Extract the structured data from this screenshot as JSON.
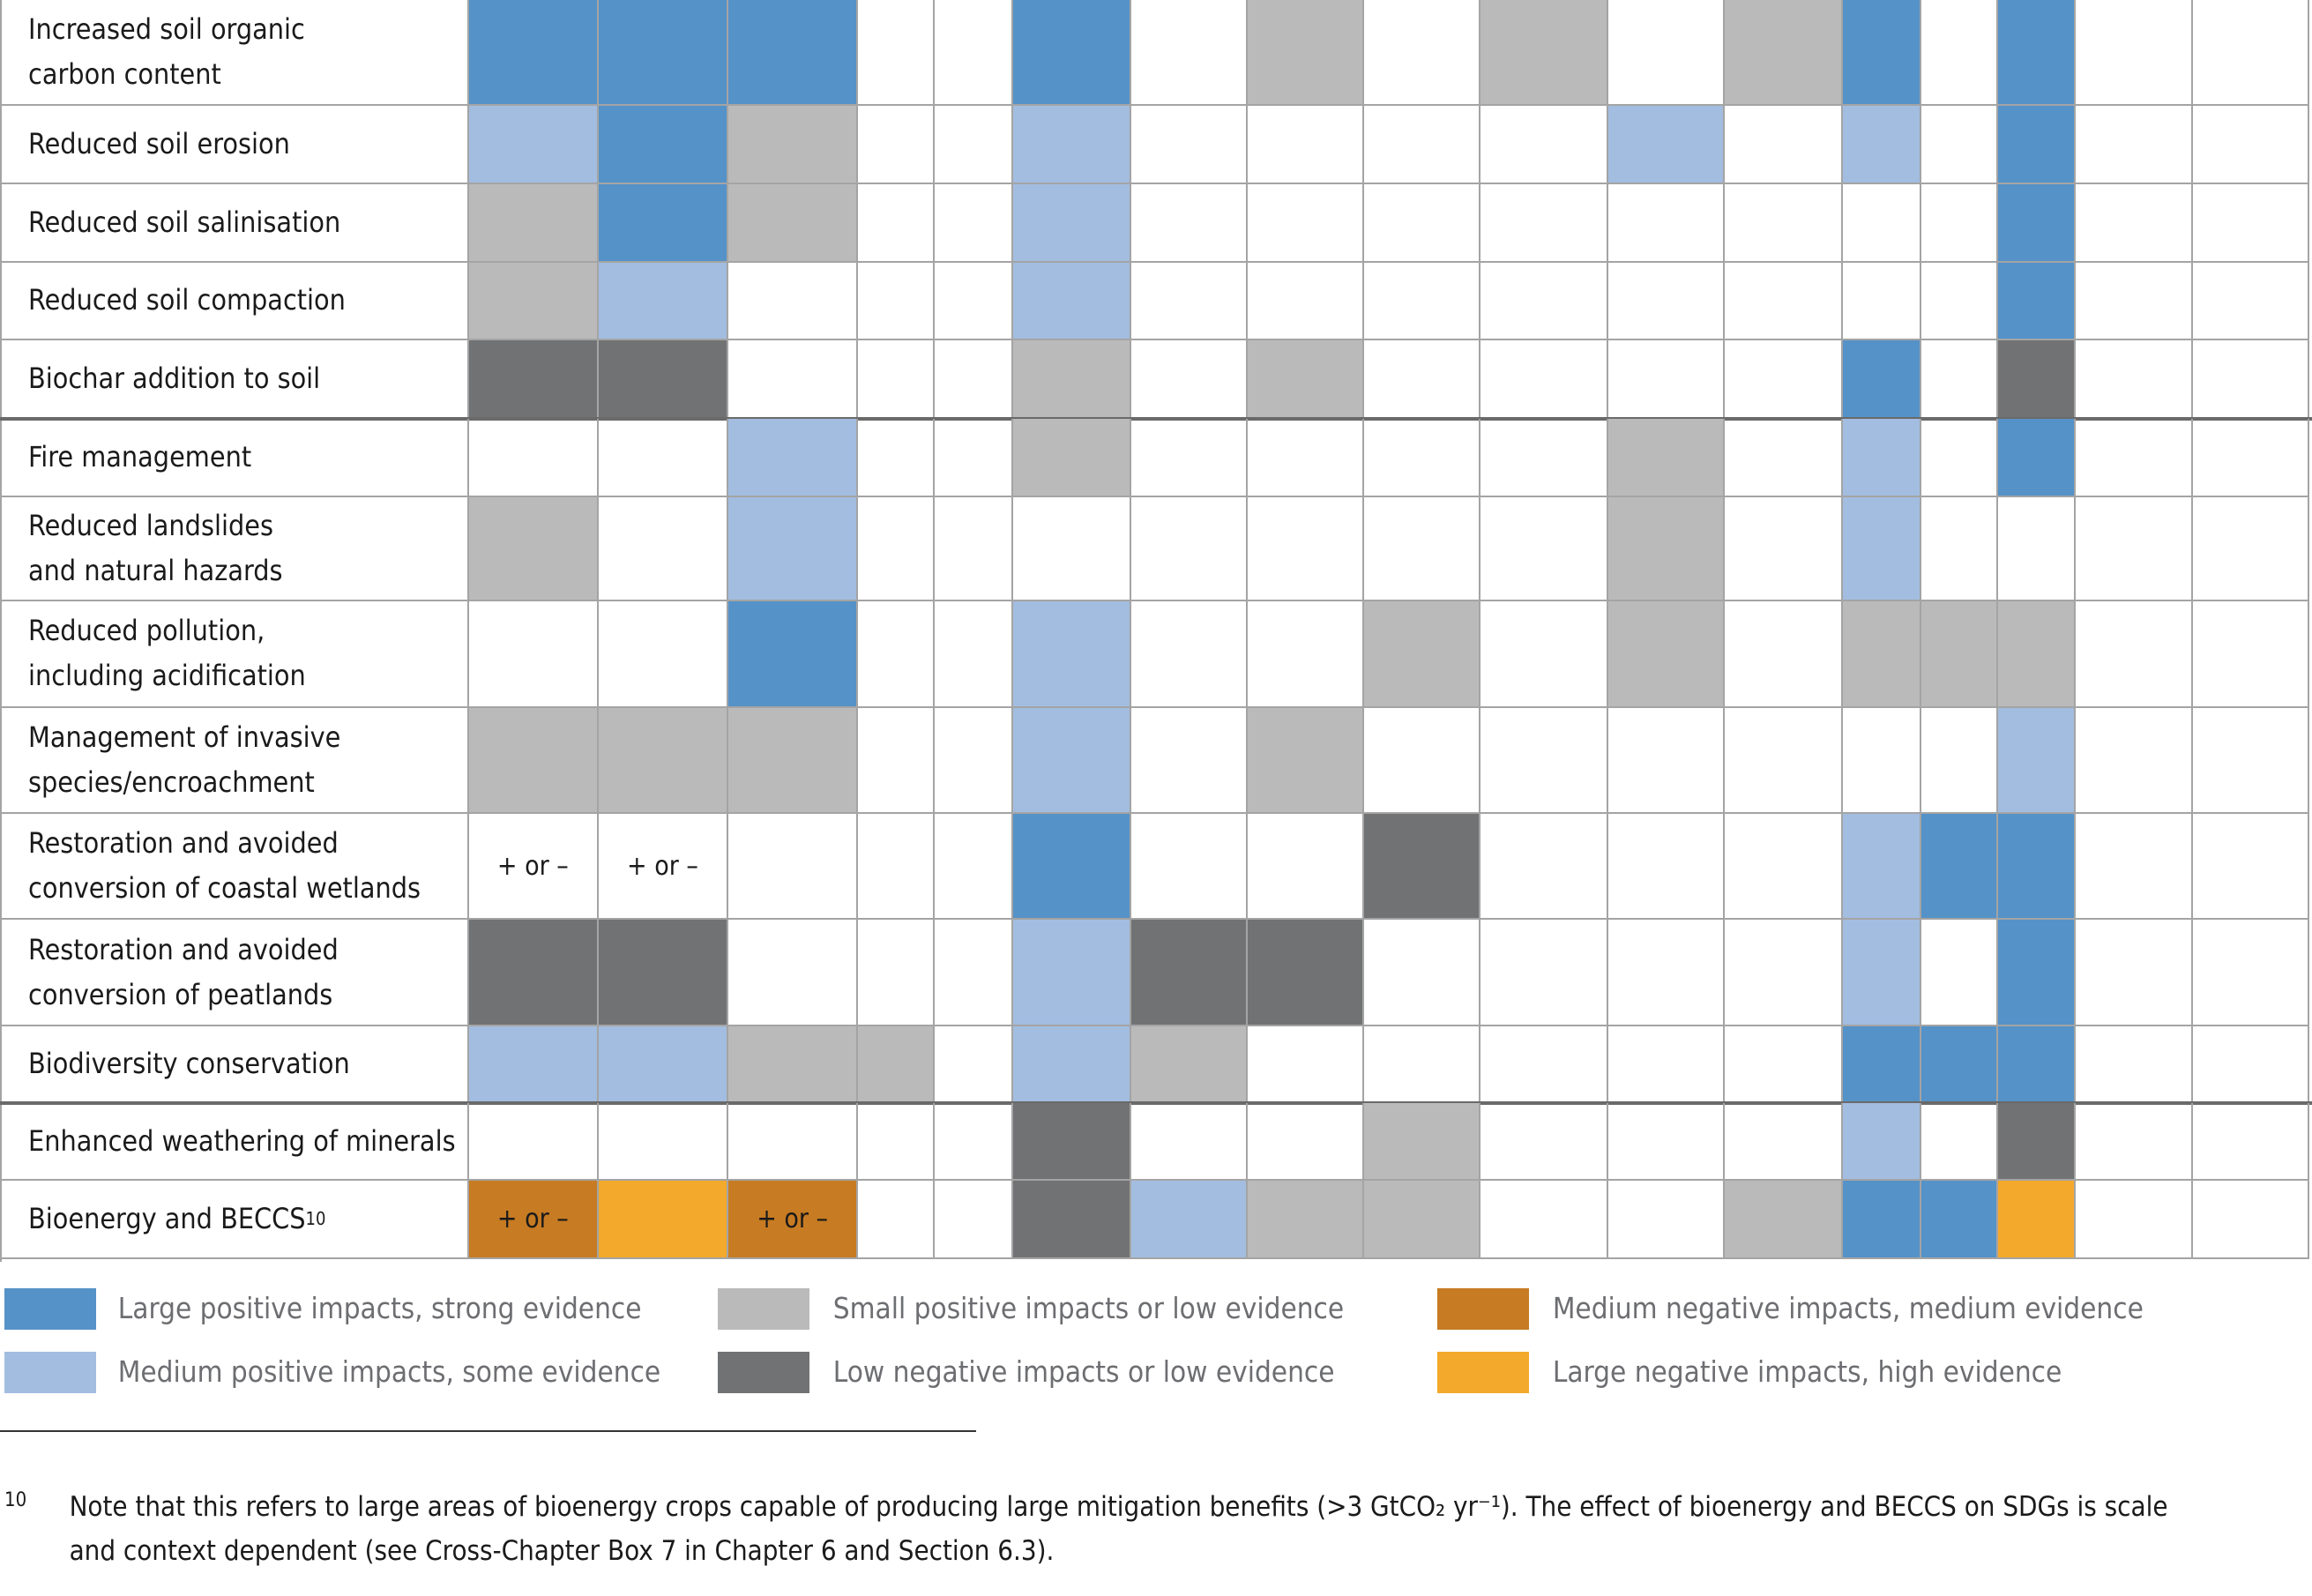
{
  "legend": [
    {
      "label": "Large positive impacts, strong evidence",
      "color": "#5592c8"
    },
    {
      "label": "Medium positive impacts, some evidence",
      "color": "#a3bde0"
    },
    {
      "label": "Small positive impacts or low evidence",
      "color": "#bababb"
    },
    {
      "label": "Low negative impacts or low evidence",
      "color": "#717274"
    },
    {
      "label": "Medium negative impacts, medium evidence",
      "color": "#c77b22"
    },
    {
      "label": "Large negative impacts, high evidence",
      "color": "#f3a92b"
    }
  ],
  "groups": [
    {
      "rows": [
        {
          "label": "Increased soil organic\ncarbon content",
          "cells": [
            0,
            0,
            0,
            null,
            null,
            0,
            null,
            2,
            null,
            2,
            null,
            2,
            0,
            null,
            0,
            null,
            null
          ]
        },
        {
          "label": "Reduced soil erosion",
          "cells": [
            1,
            0,
            2,
            null,
            null,
            1,
            null,
            null,
            null,
            null,
            1,
            null,
            1,
            null,
            0,
            null,
            null
          ]
        },
        {
          "label": "Reduced soil salinisation",
          "cells": [
            2,
            0,
            2,
            null,
            null,
            1,
            null,
            null,
            null,
            null,
            null,
            null,
            null,
            null,
            0,
            null,
            null
          ]
        },
        {
          "label": "Reduced soil compaction",
          "cells": [
            2,
            1,
            null,
            null,
            null,
            1,
            null,
            null,
            null,
            null,
            null,
            null,
            null,
            null,
            0,
            null,
            null
          ]
        },
        {
          "label": "Biochar addition to soil",
          "cells": [
            3,
            3,
            null,
            null,
            null,
            2,
            null,
            2,
            null,
            null,
            null,
            null,
            0,
            null,
            3,
            null,
            null
          ]
        }
      ]
    },
    {
      "rows": [
        {
          "label": "Fire management",
          "cells": [
            null,
            null,
            1,
            null,
            null,
            2,
            null,
            null,
            null,
            null,
            2,
            null,
            1,
            null,
            0,
            null,
            null
          ]
        },
        {
          "label": "Reduced landslides\nand natural hazards",
          "cells": [
            2,
            null,
            1,
            null,
            null,
            null,
            null,
            null,
            null,
            null,
            2,
            null,
            1,
            null,
            null,
            null,
            null
          ]
        },
        {
          "label": "Reduced pollution,\nincluding acidification",
          "cells": [
            null,
            null,
            0,
            null,
            null,
            1,
            null,
            null,
            2,
            null,
            2,
            null,
            2,
            2,
            2,
            null,
            null
          ]
        },
        {
          "label": "Management of invasive\nspecies/encroachment",
          "cells": [
            2,
            2,
            2,
            null,
            null,
            1,
            null,
            2,
            null,
            null,
            null,
            null,
            null,
            null,
            1,
            null,
            null
          ]
        },
        {
          "label": "Restoration and avoided\nconversion of coastal wetlands",
          "cells": [
            {
              "text": "+ or –"
            },
            {
              "text": "+ or –"
            },
            null,
            null,
            null,
            0,
            null,
            null,
            3,
            null,
            null,
            null,
            1,
            0,
            0,
            null,
            null
          ]
        },
        {
          "label": "Restoration and avoided\nconversion of peatlands",
          "cells": [
            3,
            3,
            null,
            null,
            null,
            1,
            3,
            3,
            null,
            null,
            null,
            null,
            1,
            null,
            0,
            null,
            null
          ]
        },
        {
          "label": "Biodiversity conservation",
          "cells": [
            1,
            1,
            2,
            2,
            null,
            1,
            2,
            null,
            null,
            null,
            null,
            null,
            0,
            0,
            0,
            null,
            null
          ]
        }
      ]
    },
    {
      "rows": [
        {
          "label": "Enhanced weathering of minerals",
          "cells": [
            null,
            null,
            null,
            null,
            null,
            3,
            null,
            null,
            2,
            null,
            null,
            null,
            1,
            null,
            3,
            null,
            null
          ]
        },
        {
          "label": "Bioenergy and BECCS",
          "sup": "10",
          "cells": [
            {
              "color": 4,
              "text": "+ or –"
            },
            5,
            {
              "color": 4,
              "text": "+ or –"
            },
            null,
            null,
            3,
            1,
            2,
            2,
            null,
            null,
            2,
            0,
            0,
            5,
            null,
            null
          ]
        }
      ]
    }
  ],
  "footnote": {
    "mark": "10",
    "text": "Note that this refers to large areas of bioenergy crops capable of producing large mitigation benefits (>3 GtCO₂ yr⁻¹). The effect of bioenergy and BECCS on SDGs is scale\nand context dependent (see Cross-Chapter Box 7 in Chapter 6 and Section 6.3)."
  }
}
